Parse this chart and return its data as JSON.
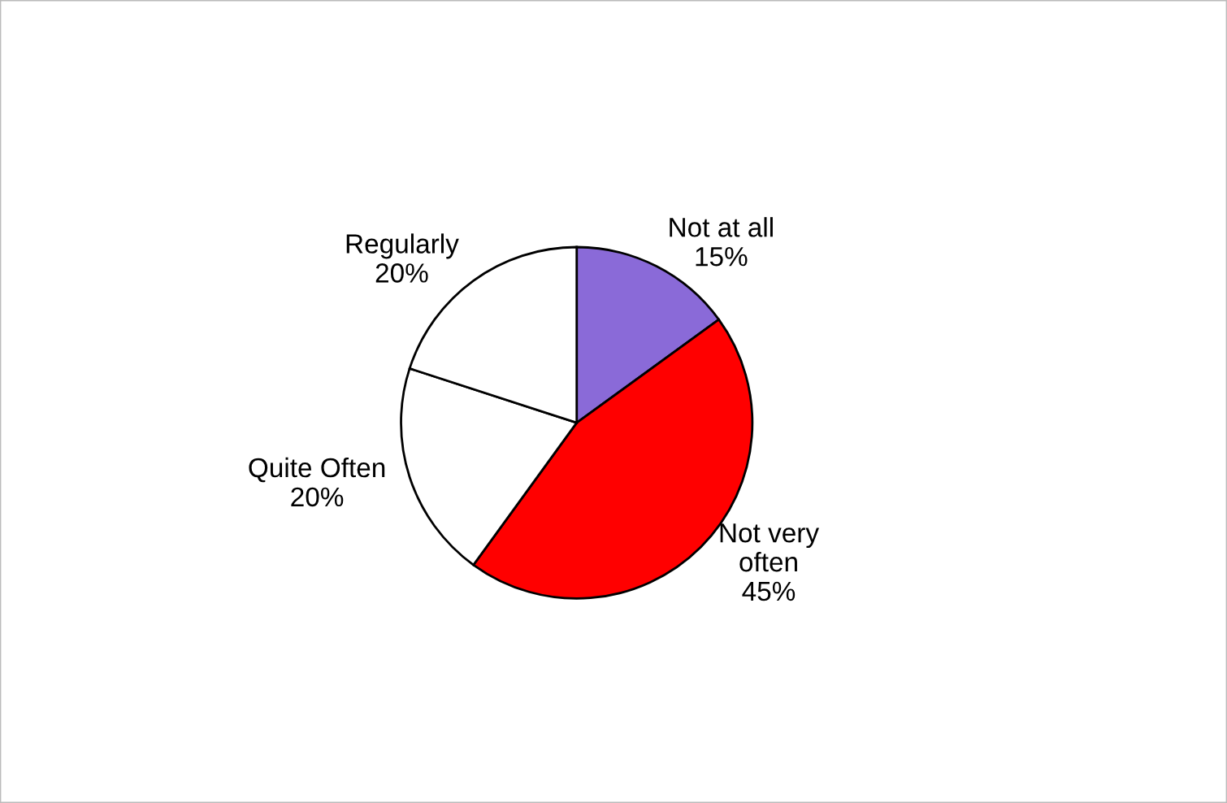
{
  "chart_data": {
    "type": "pie",
    "categories": [
      "Not at all",
      "Not very\noften",
      "Quite Often",
      "Regularly"
    ],
    "values": [
      15,
      45,
      20,
      20
    ],
    "value_labels": [
      "15%",
      "45%",
      "20%",
      "20%"
    ],
    "colors": [
      "#8a6ad8",
      "#ff0000",
      "#ffffff",
      "#ffffff"
    ],
    "legend": false
  }
}
